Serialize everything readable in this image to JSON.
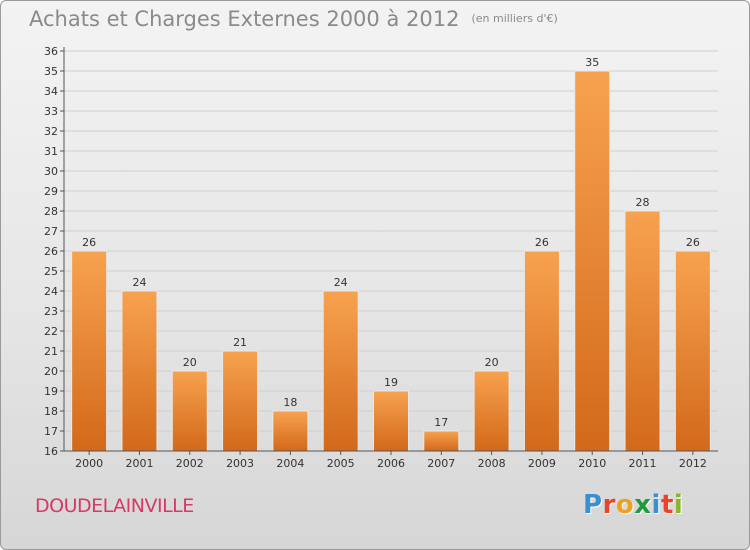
{
  "header": {
    "title": "Achats et Charges Externes 2000 à 2012",
    "unit": "(en milliers d'€)"
  },
  "footer": {
    "commune": "DOUDELAINVILLE",
    "logo_letters": [
      "P",
      "r",
      "o",
      "x",
      "i",
      "t",
      "i"
    ],
    "logo_colors": [
      "#3a8fd0",
      "#e8442c",
      "#f0a020",
      "#1f9a3c",
      "#3a8fd0",
      "#e8442c",
      "#8ab52a"
    ]
  },
  "colors": {
    "bar_light": "#f7a24f",
    "bar_dark": "#d2691a",
    "grid": "#cfcfcf",
    "axis": "#555555"
  },
  "chart_data": {
    "type": "bar",
    "categories": [
      "2000",
      "2001",
      "2002",
      "2003",
      "2004",
      "2005",
      "2006",
      "2007",
      "2008",
      "2009",
      "2010",
      "2011",
      "2012"
    ],
    "values": [
      26,
      24,
      20,
      21,
      18,
      24,
      19,
      17,
      20,
      26,
      35,
      28,
      26
    ],
    "title": "Achats et Charges Externes 2000 à 2012",
    "ylim": [
      16,
      36
    ],
    "yticks": [
      16,
      17,
      18,
      19,
      20,
      21,
      22,
      23,
      24,
      25,
      26,
      27,
      28,
      29,
      30,
      31,
      32,
      33,
      34,
      35,
      36
    ],
    "grid": true,
    "data_labels": true
  }
}
